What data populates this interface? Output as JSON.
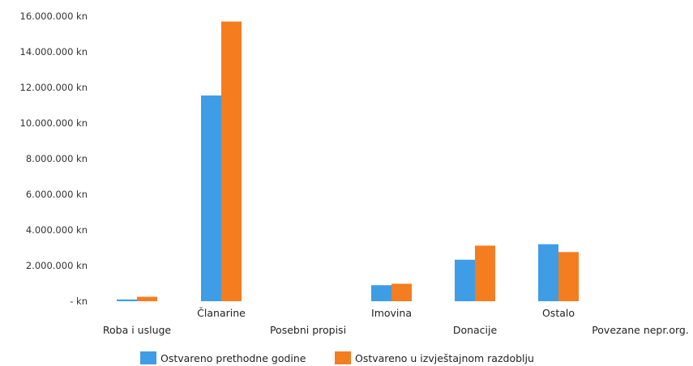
{
  "chart_data": {
    "type": "bar",
    "categories": [
      "Roba i usluge",
      "Članarine",
      "Posebni propisi",
      "Imovina",
      "Donacije",
      "Ostalo",
      "Povezane nepr.org."
    ],
    "series": [
      {
        "name": "Ostvareno prethodne godine",
        "color": "#3f9de6",
        "values": [
          100000,
          11550000,
          0,
          900000,
          2330000,
          3200000,
          0
        ]
      },
      {
        "name": "Ostvareno u izvještajnom razdoblju",
        "color": "#f47d20",
        "values": [
          250000,
          15700000,
          0,
          980000,
          3120000,
          2760000,
          0
        ]
      }
    ],
    "yticks": [
      "- kn",
      "2.000.000 kn",
      "4.000.000 kn",
      "6.000.000 kn",
      "8.000.000 kn",
      "10.000.000 kn",
      "12.000.000 kn",
      "14.000.000 kn",
      "16.000.000 kn"
    ],
    "ylim": [
      0,
      16000000
    ],
    "grid": false,
    "legend": "bottom"
  }
}
